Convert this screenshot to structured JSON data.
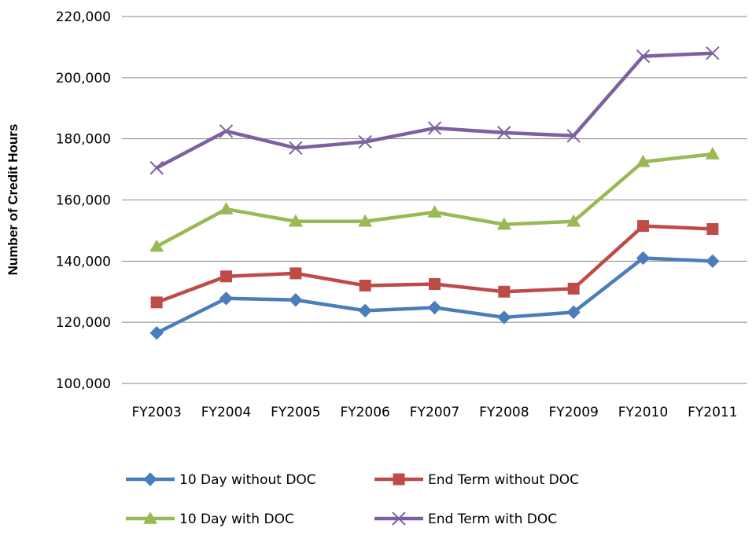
{
  "chart_data": {
    "type": "line",
    "title": "",
    "xlabel": "",
    "ylabel": "Number of Credit Hours",
    "categories": [
      "FY2003",
      "FY2004",
      "FY2005",
      "FY2006",
      "FY2007",
      "FY2008",
      "FY2009",
      "FY2010",
      "FY2011"
    ],
    "ylim": [
      100000,
      220000
    ],
    "yticks": [
      100000,
      120000,
      140000,
      160000,
      180000,
      200000,
      220000
    ],
    "ytick_labels": [
      "100,000",
      "120,000",
      "140,000",
      "160,000",
      "180,000",
      "200,000",
      "220,000"
    ],
    "grid": true,
    "legend_position": "bottom",
    "series": [
      {
        "name": "10 Day without DOC",
        "color": "#4a7ebb",
        "marker": "diamond",
        "values": [
          116500,
          127800,
          127300,
          123800,
          124800,
          121600,
          123300,
          141000,
          140000
        ]
      },
      {
        "name": "End Term without DOC",
        "color": "#be4b48",
        "marker": "square",
        "values": [
          126500,
          135000,
          136000,
          132000,
          132500,
          130000,
          131000,
          151500,
          150500
        ]
      },
      {
        "name": "10 Day with DOC",
        "color": "#98b954",
        "marker": "triangle",
        "values": [
          144800,
          157000,
          153000,
          153000,
          156000,
          152000,
          153000,
          172500,
          175000
        ]
      },
      {
        "name": "End Term with DOC",
        "color": "#7d60a0",
        "marker": "x",
        "values": [
          170500,
          182500,
          177000,
          179000,
          183500,
          182000,
          181000,
          207000,
          208000
        ]
      }
    ]
  }
}
